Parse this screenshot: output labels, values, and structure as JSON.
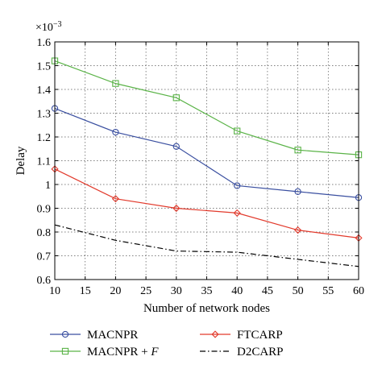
{
  "chart_data": {
    "type": "line",
    "title": "",
    "xlabel": "Number of network nodes",
    "ylabel": "Delay",
    "y_multiplier": "×10",
    "y_exponent": "−3",
    "xlim": [
      10,
      60
    ],
    "ylim": [
      0.6,
      1.6
    ],
    "x_ticks": [
      10,
      15,
      20,
      25,
      30,
      35,
      40,
      45,
      50,
      55,
      60
    ],
    "y_ticks": [
      "0.6",
      "0.7",
      "0.8",
      "0.9",
      "1",
      "1.1",
      "1.2",
      "1.3",
      "1.4",
      "1.5",
      "1.6"
    ],
    "grid": true,
    "legend_position": "bottom",
    "series": [
      {
        "name": "MACNPR",
        "name_suffix": "",
        "color": "#3a4fa0",
        "marker": "circle",
        "dash": "solid",
        "x": [
          10,
          20,
          30,
          40,
          50,
          60
        ],
        "y": [
          1.32,
          1.22,
          1.16,
          0.995,
          0.97,
          0.945
        ]
      },
      {
        "name": "MACNPR + ",
        "name_suffix": "F",
        "color": "#5ab347",
        "marker": "square",
        "dash": "solid",
        "x": [
          10,
          20,
          30,
          40,
          50,
          60
        ],
        "y": [
          1.52,
          1.425,
          1.365,
          1.225,
          1.145,
          1.125
        ]
      },
      {
        "name": "FTCARP",
        "name_suffix": "",
        "color": "#e23a2c",
        "marker": "diamond",
        "dash": "solid",
        "x": [
          10,
          20,
          30,
          40,
          50,
          60
        ],
        "y": [
          1.065,
          0.94,
          0.9,
          0.88,
          0.808,
          0.775
        ]
      },
      {
        "name": "D2CARP",
        "name_suffix": "",
        "color": "#000000",
        "marker": "none",
        "dash": "dashdot",
        "x": [
          10,
          20,
          30,
          40,
          50,
          60
        ],
        "y": [
          0.83,
          0.765,
          0.72,
          0.715,
          0.685,
          0.655
        ]
      }
    ]
  }
}
